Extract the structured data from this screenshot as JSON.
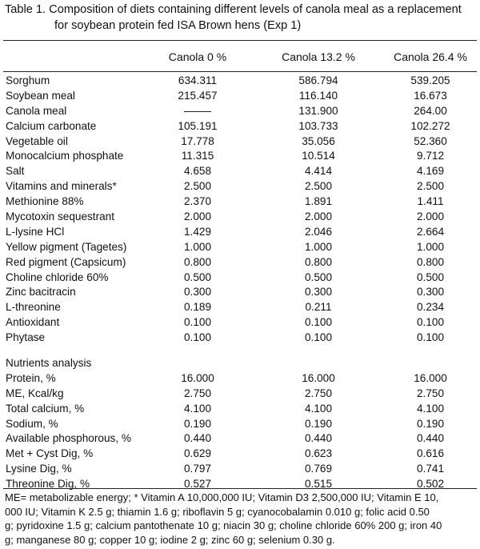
{
  "caption": {
    "line1": "Table 1.  Composition of diets containing different levels of canola meal as a replacement",
    "line2": "for soybean protein fed ISA Brown hens (Exp 1)"
  },
  "columns": [
    "Canola 0 %",
    "Canola 13.2 %",
    "Canola 26.4 %"
  ],
  "ingredients": [
    {
      "label": "Sorghum",
      "values": [
        "634.311",
        "586.794",
        "539.205"
      ]
    },
    {
      "label": "Soybean meal",
      "values": [
        "215.457",
        "116.140",
        "16.673"
      ]
    },
    {
      "label": "Canola meal",
      "values": [
        "",
        "131.900",
        "264.00"
      ]
    },
    {
      "label": "Calcium carbonate",
      "values": [
        "105.191",
        "103.733",
        "102.272"
      ]
    },
    {
      "label": "Vegetable oil",
      "values": [
        "17.778",
        "35.056",
        "52.360"
      ]
    },
    {
      "label": "Monocalcium phosphate",
      "values": [
        "11.315",
        "10.514",
        "9.712"
      ]
    },
    {
      "label": "Salt",
      "values": [
        "4.658",
        "4.414",
        "4.169"
      ]
    },
    {
      "label": "Vitamins and minerals*",
      "values": [
        "2.500",
        "2.500",
        "2.500"
      ]
    },
    {
      "label": "Methionine 88%",
      "values": [
        "2.370",
        "1.891",
        "1.411"
      ]
    },
    {
      "label": "Mycotoxin sequestrant",
      "values": [
        "2.000",
        "2.000",
        "2.000"
      ]
    },
    {
      "label": "L-lysine HCl",
      "values": [
        "1.429",
        "2.046",
        "2.664"
      ]
    },
    {
      "label": "Yellow pigment (Tagetes)",
      "values": [
        "1.000",
        "1.000",
        "1.000"
      ]
    },
    {
      "label": "Red pigment (Capsicum)",
      "values": [
        "0.800",
        "0.800",
        "0.800"
      ]
    },
    {
      "label": "Choline chloride 60%",
      "values": [
        "0.500",
        "0.500",
        "0.500"
      ]
    },
    {
      "label": "Zinc bacitracin",
      "values": [
        "0.300",
        "0.300",
        "0.300"
      ]
    },
    {
      "label": "L-threonine",
      "values": [
        "0.189",
        "0.211",
        "0.234"
      ]
    },
    {
      "label": "Antioxidant",
      "values": [
        "0.100",
        "0.100",
        "0.100"
      ]
    },
    {
      "label": "Phytase",
      "values": [
        "0.100",
        "0.100",
        "0.100"
      ]
    }
  ],
  "nutrients_heading": "Nutrients analysis",
  "nutrients": [
    {
      "label": "Protein, %",
      "values": [
        "16.000",
        "16.000",
        "16.000"
      ]
    },
    {
      "label": "ME, Kcal/kg",
      "values": [
        "2.750",
        "2.750",
        "2.750"
      ]
    },
    {
      "label": "Total calcium, %",
      "values": [
        "4.100",
        "4.100",
        "4.100"
      ]
    },
    {
      "label": "Sodium, %",
      "values": [
        "0.190",
        "0.190",
        "0.190"
      ]
    },
    {
      "label": "Available phosphorous, %",
      "values": [
        "0.440",
        "0.440",
        "0.440"
      ]
    },
    {
      "label": "Met + Cyst Dig, %",
      "values": [
        "0.629",
        "0.623",
        "0.616"
      ]
    },
    {
      "label": "Lysine Dig, %",
      "values": [
        "0.797",
        "0.769",
        "0.741"
      ]
    },
    {
      "label": "Threonine Dig, %",
      "values": [
        "0.527",
        "0.515",
        "0.502"
      ]
    }
  ],
  "footnote": [
    "ME= metabolizable energy; * Vitamin A 10,000,000 IU; Vitamin D3 2,500,000 IU; Vitamin E 10,",
    "000 IU; Vitamin K 2.5 g; thiamin 1.6 g; riboflavin 5 g; cyanocobalamin 0.010 g; folic acid 0.50",
    "g; pyridoxine 1.5 g; calcium pantothenate 10 g; niacin 30 g; choline chloride 60% 200 g; iron 40",
    "g; manganese 80 g; copper 10 g; iodine 2 g; zinc 60 g; selenium 0.30 g."
  ]
}
